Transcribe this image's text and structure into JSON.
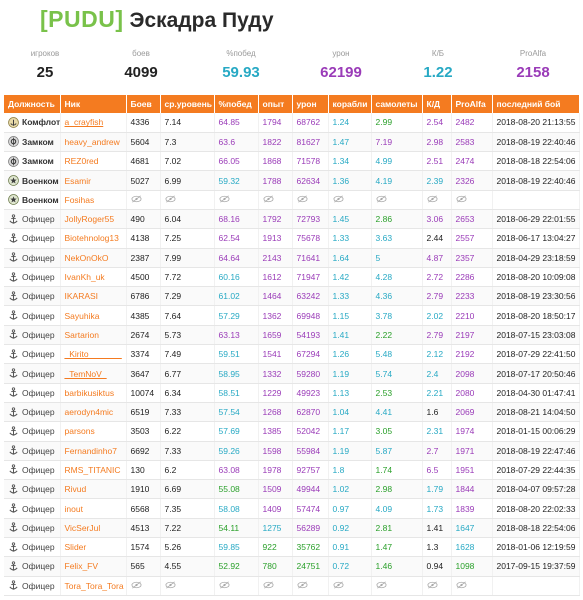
{
  "header": {
    "tag": "[PUDU]",
    "name": "Эскадра Пуду"
  },
  "summary": [
    {
      "label": "игроков",
      "value": "25",
      "color": "#222222"
    },
    {
      "label": "боев",
      "value": "4099",
      "color": "#222222"
    },
    {
      "label": "%побед",
      "value": "59.93",
      "color": "#27a9c4"
    },
    {
      "label": "урон",
      "value": "62199",
      "color": "#9a3bb8"
    },
    {
      "label": "К/Б",
      "value": "1.22",
      "color": "#27a9c4"
    },
    {
      "label": "ProAlfa",
      "value": "2158",
      "color": "#9a3bb8"
    }
  ],
  "columns": [
    "Должность",
    "Ник",
    "Боев",
    "ср.уровень",
    "%побед",
    "опыт",
    "урон",
    "корабли",
    "самолеты",
    "К/Д",
    "ProAlfa",
    "последний бой"
  ],
  "rows": [
    {
      "role": "Комфлот",
      "role_icon": "anchor-badge-icon",
      "role_bold": true,
      "nick": "a_crayfish",
      "ul": true,
      "battles": "4336",
      "lvl": "7.14",
      "wr": "64.85",
      "wr_c": "purple",
      "exp": "1794",
      "exp_c": "purple",
      "dmg": "68762",
      "dmg_c": "purple",
      "ships": "1.24",
      "ships_c": "ships",
      "planes": "2.99",
      "planes_c": "planes-green",
      "kd": "2.54",
      "kd_c": "kd-purple",
      "pa": "2482",
      "pa_c": "pa-purple",
      "last": "2018-08-20 21:13:55"
    },
    {
      "role": "Замком",
      "role_icon": "gear-badge-icon",
      "role_bold": true,
      "nick": "heavy_andrew",
      "ul": false,
      "battles": "5604",
      "lvl": "7.3",
      "wr": "63.6",
      "wr_c": "purple",
      "exp": "1822",
      "exp_c": "purple",
      "dmg": "81627",
      "dmg_c": "purple",
      "ships": "1.47",
      "ships_c": "ships",
      "planes": "7.19",
      "planes_c": "planes-purple",
      "kd": "2.98",
      "kd_c": "kd-purple",
      "pa": "2583",
      "pa_c": "pa-purple",
      "last": "2018-08-19 22:40:46"
    },
    {
      "role": "Замком",
      "role_icon": "gear-badge-icon",
      "role_bold": true,
      "nick": "REZ0red",
      "ul": false,
      "battles": "4681",
      "lvl": "7.02",
      "wr": "66.05",
      "wr_c": "purple",
      "exp": "1868",
      "exp_c": "purple",
      "dmg": "71578",
      "dmg_c": "purple",
      "ships": "1.34",
      "ships_c": "ships",
      "planes": "4.99",
      "planes_c": "planes-cyan",
      "kd": "2.51",
      "kd_c": "kd-purple",
      "pa": "2474",
      "pa_c": "pa-purple",
      "last": "2018-08-18 22:54:06"
    },
    {
      "role": "Военком",
      "role_icon": "star-badge-icon",
      "role_bold": true,
      "nick": "Esamir",
      "ul": false,
      "battles": "5027",
      "lvl": "6.99",
      "wr": "59.32",
      "wr_c": "cyan",
      "exp": "1788",
      "exp_c": "purple",
      "dmg": "62634",
      "dmg_c": "purple",
      "ships": "1.36",
      "ships_c": "ships",
      "planes": "4.19",
      "planes_c": "planes-cyan",
      "kd": "2.39",
      "kd_c": "kd-cyan",
      "pa": "2326",
      "pa_c": "pa-purple",
      "last": "2018-08-19 22:40:46"
    },
    {
      "role": "Военком",
      "role_icon": "star-badge-icon",
      "role_bold": true,
      "nick": "Fosihas",
      "ul": false,
      "hidden": true
    },
    {
      "role": "Офицер",
      "role_icon": "anchor-icon",
      "role_bold": false,
      "nick": "JollyRoger55",
      "ul": false,
      "battles": "490",
      "lvl": "6.04",
      "wr": "68.16",
      "wr_c": "purple",
      "exp": "1792",
      "exp_c": "purple",
      "dmg": "72793",
      "dmg_c": "purple",
      "ships": "1.45",
      "ships_c": "ships",
      "planes": "2.86",
      "planes_c": "planes-green",
      "kd": "3.06",
      "kd_c": "kd-purple",
      "pa": "2653",
      "pa_c": "pa-purple",
      "last": "2018-06-29 22:01:55"
    },
    {
      "role": "Офицер",
      "role_icon": "anchor-icon",
      "role_bold": false,
      "nick": "Biotehnolog13",
      "ul": false,
      "battles": "4138",
      "lvl": "7.25",
      "wr": "62.54",
      "wr_c": "purple",
      "exp": "1913",
      "exp_c": "purple",
      "dmg": "75678",
      "dmg_c": "purple",
      "ships": "1.33",
      "ships_c": "ships",
      "planes": "3.63",
      "planes_c": "planes-cyan",
      "kd": "2.44",
      "kd_c": "kd-dark",
      "pa": "2557",
      "pa_c": "pa-purple",
      "last": "2018-06-17 13:04:27"
    },
    {
      "role": "Офицер",
      "role_icon": "anchor-icon",
      "role_bold": false,
      "nick": "NekOnOkO",
      "ul": false,
      "battles": "2387",
      "lvl": "7.99",
      "wr": "64.64",
      "wr_c": "purple",
      "exp": "2143",
      "exp_c": "purple",
      "dmg": "71641",
      "dmg_c": "purple",
      "ships": "1.64",
      "ships_c": "ships",
      "planes": "5",
      "planes_c": "planes-cyan",
      "kd": "4.87",
      "kd_c": "kd-purple",
      "pa": "2357",
      "pa_c": "pa-purple",
      "last": "2018-04-29 23:18:59"
    },
    {
      "role": "Офицер",
      "role_icon": "anchor-icon",
      "role_bold": false,
      "nick": "IvanKh_uk",
      "ul": false,
      "battles": "4500",
      "lvl": "7.72",
      "wr": "60.16",
      "wr_c": "cyan",
      "exp": "1612",
      "exp_c": "purple",
      "dmg": "71947",
      "dmg_c": "purple",
      "ships": "1.42",
      "ships_c": "ships",
      "planes": "4.28",
      "planes_c": "planes-cyan",
      "kd": "2.72",
      "kd_c": "kd-purple",
      "pa": "2286",
      "pa_c": "pa-purple",
      "last": "2018-08-20 10:09:08"
    },
    {
      "role": "Офицер",
      "role_icon": "anchor-icon",
      "role_bold": false,
      "nick": "IKARASI",
      "ul": false,
      "battles": "6786",
      "lvl": "7.29",
      "wr": "61.02",
      "wr_c": "cyan",
      "exp": "1464",
      "exp_c": "purple",
      "dmg": "63242",
      "dmg_c": "purple",
      "ships": "1.33",
      "ships_c": "ships",
      "planes": "4.36",
      "planes_c": "planes-cyan",
      "kd": "2.79",
      "kd_c": "kd-purple",
      "pa": "2233",
      "pa_c": "pa-purple",
      "last": "2018-08-19 23:30:56"
    },
    {
      "role": "Офицер",
      "role_icon": "anchor-icon",
      "role_bold": false,
      "nick": "Sayuhika",
      "ul": false,
      "battles": "4385",
      "lvl": "7.64",
      "wr": "57.29",
      "wr_c": "cyan",
      "exp": "1362",
      "exp_c": "purple",
      "dmg": "69948",
      "dmg_c": "purple",
      "ships": "1.15",
      "ships_c": "ships",
      "planes": "3.78",
      "planes_c": "planes-cyan",
      "kd": "2.02",
      "kd_c": "kd-cyan",
      "pa": "2210",
      "pa_c": "pa-purple",
      "last": "2018-08-20 18:50:17"
    },
    {
      "role": "Офицер",
      "role_icon": "anchor-icon",
      "role_bold": false,
      "nick": "Sartarion",
      "ul": false,
      "battles": "2674",
      "lvl": "5.73",
      "wr": "63.13",
      "wr_c": "purple",
      "exp": "1659",
      "exp_c": "purple",
      "dmg": "54193",
      "dmg_c": "purple",
      "ships": "1.41",
      "ships_c": "ships",
      "planes": "2.22",
      "planes_c": "planes-green",
      "kd": "2.79",
      "kd_c": "kd-purple",
      "pa": "2197",
      "pa_c": "pa-purple",
      "last": "2018-07-15 23:03:08"
    },
    {
      "role": "Офицер",
      "role_icon": "anchor-icon",
      "role_bold": false,
      "nick": "_Kirito_______",
      "ul": true,
      "battles": "3374",
      "lvl": "7.49",
      "wr": "59.51",
      "wr_c": "cyan",
      "exp": "1541",
      "exp_c": "purple",
      "dmg": "67294",
      "dmg_c": "purple",
      "ships": "1.26",
      "ships_c": "ships",
      "planes": "5.48",
      "planes_c": "planes-cyan",
      "kd": "2.12",
      "kd_c": "kd-cyan",
      "pa": "2192",
      "pa_c": "pa-purple",
      "last": "2018-07-29 22:41:50"
    },
    {
      "role": "Офицер",
      "role_icon": "anchor-icon",
      "role_bold": false,
      "nick": "_TemNoV_",
      "ul": true,
      "battles": "3647",
      "lvl": "6.77",
      "wr": "58.95",
      "wr_c": "cyan",
      "exp": "1332",
      "exp_c": "purple",
      "dmg": "59280",
      "dmg_c": "purple",
      "ships": "1.19",
      "ships_c": "ships",
      "planes": "5.74",
      "planes_c": "planes-cyan",
      "kd": "2.4",
      "kd_c": "kd-cyan",
      "pa": "2098",
      "pa_c": "pa-purple",
      "last": "2018-07-17 20:50:46"
    },
    {
      "role": "Офицер",
      "role_icon": "anchor-icon",
      "role_bold": false,
      "nick": "barbikusiktus",
      "ul": false,
      "battles": "10074",
      "lvl": "6.34",
      "wr": "58.51",
      "wr_c": "cyan",
      "exp": "1229",
      "exp_c": "purple",
      "dmg": "49923",
      "dmg_c": "purple",
      "ships": "1.13",
      "ships_c": "ships",
      "planes": "2.53",
      "planes_c": "planes-green",
      "kd": "2.21",
      "kd_c": "kd-cyan",
      "pa": "2080",
      "pa_c": "pa-purple",
      "last": "2018-04-30 01:47:41"
    },
    {
      "role": "Офицер",
      "role_icon": "anchor-icon",
      "role_bold": false,
      "nick": "aerodyn4mic",
      "ul": false,
      "battles": "6519",
      "lvl": "7.33",
      "wr": "57.54",
      "wr_c": "cyan",
      "exp": "1268",
      "exp_c": "purple",
      "dmg": "62870",
      "dmg_c": "purple",
      "ships": "1.04",
      "ships_c": "ships",
      "planes": "4.41",
      "planes_c": "planes-cyan",
      "kd": "1.6",
      "kd_c": "kd-dark",
      "pa": "2069",
      "pa_c": "pa-purple",
      "last": "2018-08-21 14:04:50"
    },
    {
      "role": "Офицер",
      "role_icon": "anchor-icon",
      "role_bold": false,
      "nick": "parsons",
      "ul": false,
      "battles": "3503",
      "lvl": "6.22",
      "wr": "57.69",
      "wr_c": "cyan",
      "exp": "1385",
      "exp_c": "purple",
      "dmg": "52042",
      "dmg_c": "purple",
      "ships": "1.17",
      "ships_c": "ships",
      "planes": "3.05",
      "planes_c": "planes-green",
      "kd": "2.31",
      "kd_c": "kd-cyan",
      "pa": "1974",
      "pa_c": "pa-purple",
      "last": "2018-01-15 00:06:29"
    },
    {
      "role": "Офицер",
      "role_icon": "anchor-icon",
      "role_bold": false,
      "nick": "Fernandinho7",
      "ul": false,
      "battles": "6692",
      "lvl": "7.33",
      "wr": "59.26",
      "wr_c": "cyan",
      "exp": "1598",
      "exp_c": "purple",
      "dmg": "55984",
      "dmg_c": "purple",
      "ships": "1.19",
      "ships_c": "ships",
      "planes": "5.87",
      "planes_c": "planes-cyan",
      "kd": "2.7",
      "kd_c": "kd-purple",
      "pa": "1971",
      "pa_c": "pa-purple",
      "last": "2018-08-19 22:47:46"
    },
    {
      "role": "Офицер",
      "role_icon": "anchor-icon",
      "role_bold": false,
      "nick": "RMS_TITANIC",
      "ul": false,
      "battles": "130",
      "lvl": "6.2",
      "wr": "63.08",
      "wr_c": "purple",
      "exp": "1978",
      "exp_c": "purple",
      "dmg": "92757",
      "dmg_c": "purple",
      "ships": "1.8",
      "ships_c": "ships",
      "planes": "1.74",
      "planes_c": "planes-green",
      "kd": "6.5",
      "kd_c": "kd-purple",
      "pa": "1951",
      "pa_c": "pa-purple",
      "last": "2018-07-29 22:44:35"
    },
    {
      "role": "Офицер",
      "role_icon": "anchor-icon",
      "role_bold": false,
      "nick": "Rivud",
      "ul": false,
      "battles": "1910",
      "lvl": "6.69",
      "wr": "55.08",
      "wr_c": "green",
      "exp": "1509",
      "exp_c": "purple",
      "dmg": "49944",
      "dmg_c": "purple",
      "ships": "1.02",
      "ships_c": "ships",
      "planes": "2.98",
      "planes_c": "planes-green",
      "kd": "1.79",
      "kd_c": "kd-cyan",
      "pa": "1844",
      "pa_c": "pa-purple",
      "last": "2018-04-07 09:57:28"
    },
    {
      "role": "Офицер",
      "role_icon": "anchor-icon",
      "role_bold": false,
      "nick": "inout",
      "ul": false,
      "battles": "6568",
      "lvl": "7.35",
      "wr": "58.08",
      "wr_c": "cyan",
      "exp": "1409",
      "exp_c": "purple",
      "dmg": "57474",
      "dmg_c": "purple",
      "ships": "0.97",
      "ships_c": "ships",
      "planes": "4.09",
      "planes_c": "planes-cyan",
      "kd": "1.73",
      "kd_c": "kd-cyan",
      "pa": "1839",
      "pa_c": "pa-purple",
      "last": "2018-08-20 22:02:33"
    },
    {
      "role": "Офицер",
      "role_icon": "anchor-icon",
      "role_bold": false,
      "nick": "VicSerJul",
      "ul": false,
      "battles": "4513",
      "lvl": "7.22",
      "wr": "54.11",
      "wr_c": "green",
      "exp": "1275",
      "exp_c": "cyan",
      "dmg": "56289",
      "dmg_c": "purple",
      "ships": "0.92",
      "ships_c": "ships",
      "planes": "2.81",
      "planes_c": "planes-green",
      "kd": "1.41",
      "kd_c": "kd-dark",
      "pa": "1647",
      "pa_c": "pa-cyan",
      "last": "2018-08-18 22:54:06"
    },
    {
      "role": "Офицер",
      "role_icon": "anchor-icon",
      "role_bold": false,
      "nick": "Slider",
      "ul": false,
      "battles": "1574",
      "lvl": "5.26",
      "wr": "59.85",
      "wr_c": "cyan",
      "exp": "922",
      "exp_c": "green",
      "dmg": "35762",
      "dmg_c": "green",
      "ships": "0.91",
      "ships_c": "ships",
      "planes": "1.47",
      "planes_c": "planes-green",
      "kd": "1.3",
      "kd_c": "kd-dark",
      "pa": "1628",
      "pa_c": "pa-cyan",
      "last": "2018-01-06 12:19:59"
    },
    {
      "role": "Офицер",
      "role_icon": "anchor-icon",
      "role_bold": false,
      "nick": "Felix_FV",
      "ul": false,
      "battles": "565",
      "lvl": "4.55",
      "wr": "52.92",
      "wr_c": "green",
      "exp": "780",
      "exp_c": "green",
      "dmg": "24751",
      "dmg_c": "green",
      "ships": "0.72",
      "ships_c": "ships",
      "planes": "1.46",
      "planes_c": "planes-green",
      "kd": "0.94",
      "kd_c": "kd-dark",
      "pa": "1098",
      "pa_c": "pa-green",
      "last": "2017-09-15 19:37:59"
    },
    {
      "role": "Офицер",
      "role_icon": "anchor-icon",
      "role_bold": false,
      "nick": "Tora_Tora_Tora",
      "ul": false,
      "hidden": true
    }
  ],
  "colors": {
    "accent": "#f47b20",
    "tag_green": "#79c24a",
    "purple": "#9a3bb8",
    "cyan": "#27a9c4",
    "green": "#2aa02a"
  },
  "hidden_icon": "eye-slash-icon"
}
